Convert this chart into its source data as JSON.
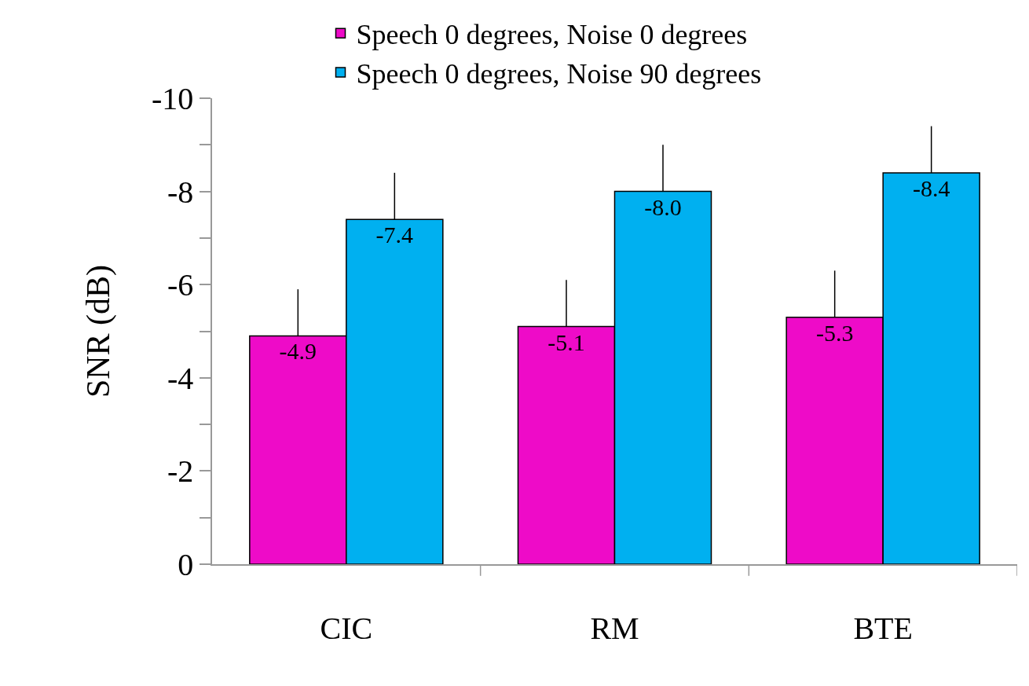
{
  "chart_data": {
    "type": "bar",
    "ylabel": "SNR (dB)",
    "categories": [
      "CIC",
      "RM",
      "BTE"
    ],
    "series": [
      {
        "name": "Speech 0 degrees, Noise 0 degrees",
        "color": "#ee0bc8",
        "values": [
          -4.9,
          -5.1,
          -5.3
        ],
        "value_labels": [
          "-4.9",
          "-5.1",
          "-5.3"
        ],
        "errors": [
          [
            -5.9,
            -4.9
          ],
          [
            -6.1,
            -5.1
          ],
          [
            -6.3,
            -5.3
          ]
        ]
      },
      {
        "name": "Speech 0 degrees, Noise 90 degrees",
        "color": "#00b0f0",
        "values": [
          -7.4,
          -8.0,
          -8.4
        ],
        "value_labels": [
          "-7.4",
          "-8.0",
          "-8.4"
        ],
        "errors": [
          [
            -8.4,
            -7.4
          ],
          [
            -9.0,
            -8.0
          ],
          [
            -9.4,
            -8.4
          ]
        ]
      }
    ],
    "ylim": [
      0,
      -10
    ],
    "yticks": [
      0,
      {
        "value": -1,
        "label": null
      },
      -2,
      {
        "value": -3,
        "label": null
      },
      -4,
      {
        "value": -5,
        "label": null
      },
      -6,
      {
        "value": -7,
        "label": null
      },
      -8,
      {
        "value": -9,
        "label": null
      },
      -10
    ],
    "grid": false,
    "legend": "top"
  }
}
